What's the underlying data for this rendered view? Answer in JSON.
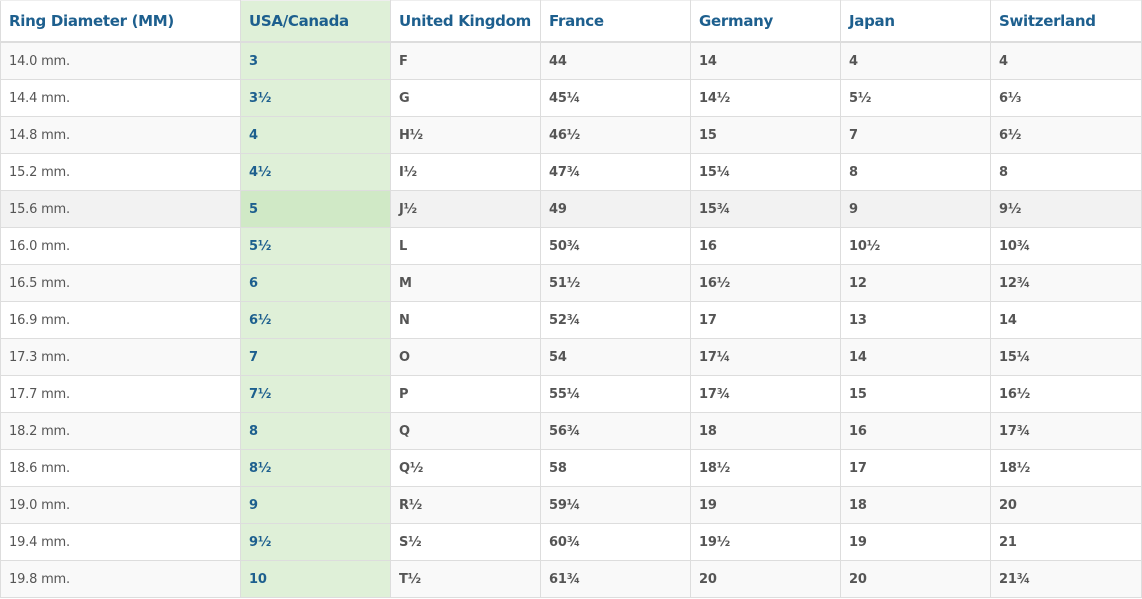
{
  "colors": {
    "header_text": "#1d5f8e",
    "highlight_column": "#dff0d8",
    "highlight_hover": "#d0e9c6"
  },
  "table": {
    "headers": [
      "Ring Diameter (MM)",
      "USA/Canada",
      "United Kingdom",
      "France",
      "Germany",
      "Japan",
      "Switzerland"
    ],
    "hovered_row": 4,
    "rows": [
      [
        "14.0 mm.",
        "3",
        "F",
        "44",
        "14",
        "4",
        "4"
      ],
      [
        "14.4 mm.",
        "3½",
        "G",
        "45¼",
        "14½",
        "5½",
        "6⅓"
      ],
      [
        "14.8 mm.",
        "4",
        "H½",
        "46½",
        "15",
        "7",
        "6½"
      ],
      [
        "15.2 mm.",
        "4½",
        "I½",
        "47¾",
        "15¼",
        "8",
        "8"
      ],
      [
        "15.6 mm.",
        "5",
        "J½",
        "49",
        "15¾",
        "9",
        "9½"
      ],
      [
        "16.0 mm.",
        "5½",
        "L",
        "50¾",
        "16",
        "10½",
        "10¾"
      ],
      [
        "16.5 mm.",
        "6",
        "M",
        "51½",
        "16½",
        "12",
        "12¾"
      ],
      [
        "16.9 mm.",
        "6½",
        "N",
        "52¾",
        "17",
        "13",
        "14"
      ],
      [
        "17.3 mm.",
        "7",
        "O",
        "54",
        "17¼",
        "14",
        "15¼"
      ],
      [
        "17.7 mm.",
        "7½",
        "P",
        "55¼",
        "17¾",
        "15",
        "16½"
      ],
      [
        "18.2 mm.",
        "8",
        "Q",
        "56¾",
        "18",
        "16",
        "17¾"
      ],
      [
        "18.6 mm.",
        "8½",
        "Q½",
        "58",
        "18½",
        "17",
        "18½"
      ],
      [
        "19.0 mm.",
        "9",
        "R½",
        "59¼",
        "19",
        "18",
        "20"
      ],
      [
        "19.4 mm.",
        "9½",
        "S½",
        "60¾",
        "19½",
        "19",
        "21"
      ],
      [
        "19.8 mm.",
        "10",
        "T½",
        "61¾",
        "20",
        "20",
        "21¾"
      ]
    ]
  }
}
